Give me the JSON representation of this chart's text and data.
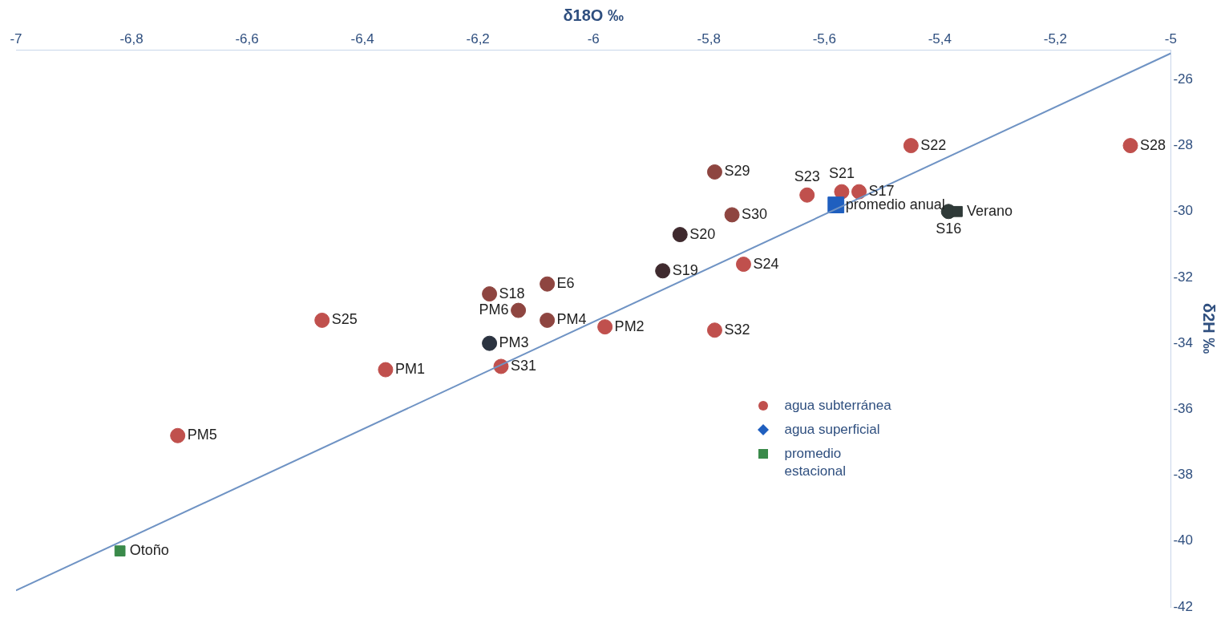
{
  "chart_data": {
    "type": "scatter",
    "xlabel": "δ18O ‰",
    "ylabel": "δ2H ‰",
    "xlim": [
      -7,
      -5
    ],
    "xticks": [
      -7,
      {
        "value": -6.8,
        "label": "-6,8"
      },
      {
        "value": -6.6,
        "label": "-6,6"
      },
      {
        "value": -6.4,
        "label": "-6,4"
      },
      {
        "value": -6.2,
        "label": "-6,2"
      },
      -6,
      {
        "value": -5.8,
        "label": "-5,8"
      },
      {
        "value": -5.6,
        "label": "-5,6"
      },
      {
        "value": -5.4,
        "label": "-5,4"
      },
      {
        "value": -5.2,
        "label": "-5,2"
      },
      -5
    ],
    "ylim": [
      -42,
      -25.1
    ],
    "yticks": [
      -42,
      -40,
      -38,
      -36,
      -34,
      -32,
      -30,
      -28,
      -26
    ],
    "grid": false,
    "legend": "bottom right",
    "marker": "circle",
    "series": [
      {
        "name": "agua subterránea",
        "color": "#c0504d",
        "x": [
          -5.07,
          -5.45,
          -5.79,
          -5.63,
          -5.57,
          -5.54,
          -5.385,
          -5.76,
          -5.85,
          -5.74,
          -5.88,
          -6.08,
          -6.18,
          -6.13,
          -6.47,
          -6.08,
          -5.98,
          -5.79,
          -6.18,
          -6.16,
          -6.36,
          -6.72
        ],
        "values": [
          -28.0,
          -28.0,
          -28.8,
          -29.5,
          -29.4,
          -29.4,
          -30.0,
          -30.1,
          -30.7,
          -31.6,
          -31.8,
          -32.2,
          -32.5,
          -33.0,
          -33.3,
          -33.3,
          -33.5,
          -33.6,
          -34.0,
          -34.7,
          -34.8,
          -36.8
        ],
        "colors": [
          "#c0504d",
          "#c0504d",
          "#8e4540",
          "#c0504d",
          "#c0504d",
          "#c0504d",
          "#2f3a38",
          "#8e4540",
          "#3f2a2e",
          "#c0504d",
          "#3f2a2e",
          "#8e4540",
          "#8e4540",
          "#8e4540",
          "#c0504d",
          "#8e4540",
          "#c0504d",
          "#c0504d",
          "#2b3340",
          "#c0504d",
          "#c0504d",
          "#c0504d"
        ]
      },
      {
        "name": "agua superficial",
        "marker": "diamond",
        "color": "#1f5fbf"
      },
      {
        "name": "promedio estacional",
        "marker": "square",
        "color": "#3a8a4a",
        "x": [
          -6.82,
          -5.37
        ],
        "values": [
          -40.3,
          -30.0
        ],
        "colors": [
          "#3a8a4a",
          "#2f3a38"
        ]
      },
      {
        "marker": "square",
        "color": "#1f5fbf",
        "x": [
          -5.58
        ],
        "values": [
          -29.8
        ]
      },
      {
        "type": "line",
        "marker": "none",
        "color": "#6f93c4",
        "x": [
          -7,
          -5
        ],
        "values": [
          -41.5,
          -25.2
        ]
      }
    ],
    "annotations": [
      {
        "text": "S28",
        "x": -5.07,
        "y": -28.0
      },
      {
        "text": "S22",
        "x": -5.45,
        "y": -28.0
      },
      {
        "text": "S29",
        "x": -5.79,
        "y": -28.8
      },
      {
        "text": "S23",
        "x": -5.63,
        "y": -29.5
      },
      {
        "text": "S21",
        "x": -5.57,
        "y": -29.4
      },
      {
        "text": "S17",
        "x": -5.54,
        "y": -29.4
      },
      {
        "text": "promedio anual",
        "x": -5.58,
        "y": -29.8
      },
      {
        "text": "Verano",
        "x": -5.37,
        "y": -30.0
      },
      {
        "text": "S16",
        "x": -5.385,
        "y": -30.0
      },
      {
        "text": "S30",
        "x": -5.76,
        "y": -30.1
      },
      {
        "text": "S20",
        "x": -5.85,
        "y": -30.7
      },
      {
        "text": "S24",
        "x": -5.74,
        "y": -31.6
      },
      {
        "text": "S19",
        "x": -5.88,
        "y": -31.8
      },
      {
        "text": "E6",
        "x": -6.08,
        "y": -32.2
      },
      {
        "text": "S18",
        "x": -6.18,
        "y": -32.5
      },
      {
        "text": "PM6",
        "x": -6.13,
        "y": -33.0
      },
      {
        "text": "S25",
        "x": -6.47,
        "y": -33.3
      },
      {
        "text": "PM4",
        "x": -6.08,
        "y": -33.3
      },
      {
        "text": "PM2",
        "x": -5.98,
        "y": -33.5
      },
      {
        "text": "S32",
        "x": -5.79,
        "y": -33.6
      },
      {
        "text": "PM3",
        "x": -6.18,
        "y": -34.0
      },
      {
        "text": "S31",
        "x": -6.16,
        "y": -34.7
      },
      {
        "text": "PM1",
        "x": -6.36,
        "y": -34.8
      },
      {
        "text": "PM5",
        "x": -6.72,
        "y": -36.8
      },
      {
        "text": "Otoño",
        "x": -6.82,
        "y": -40.3
      }
    ]
  }
}
